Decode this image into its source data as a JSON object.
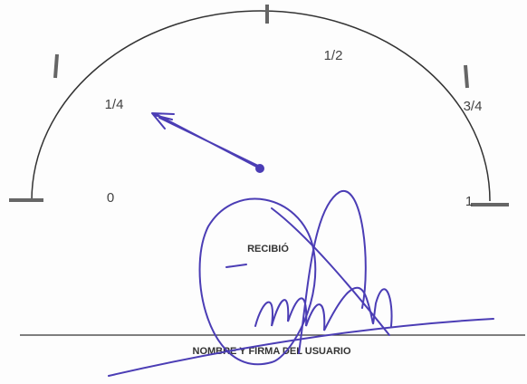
{
  "gauge": {
    "labels": [
      "0",
      "1/4",
      "1/2",
      "3/4",
      "1"
    ]
  },
  "receipt": {
    "label": "RECIBIÓ",
    "signature_line_label": "NOMBRE Y FIRMA DEL USUARIO"
  }
}
